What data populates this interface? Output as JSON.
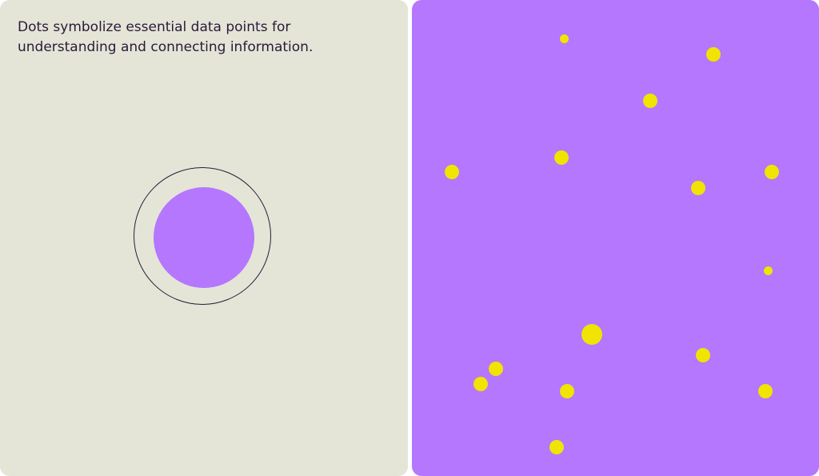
{
  "left_panel": {
    "caption": "Dots symbolize essential data points for\nunderstanding and connecting information.",
    "illustration": "dot-in-ring"
  },
  "right_panel": {
    "illustration": "scattered-dots"
  },
  "colors": {
    "left_background": "#e4e5d6",
    "right_background": "#b477fe",
    "caption_text": "#2a1a3a",
    "ring_stroke": "#2a1a3a",
    "core_dot": "#b477fe",
    "scatter_dot": "#f0e400"
  }
}
